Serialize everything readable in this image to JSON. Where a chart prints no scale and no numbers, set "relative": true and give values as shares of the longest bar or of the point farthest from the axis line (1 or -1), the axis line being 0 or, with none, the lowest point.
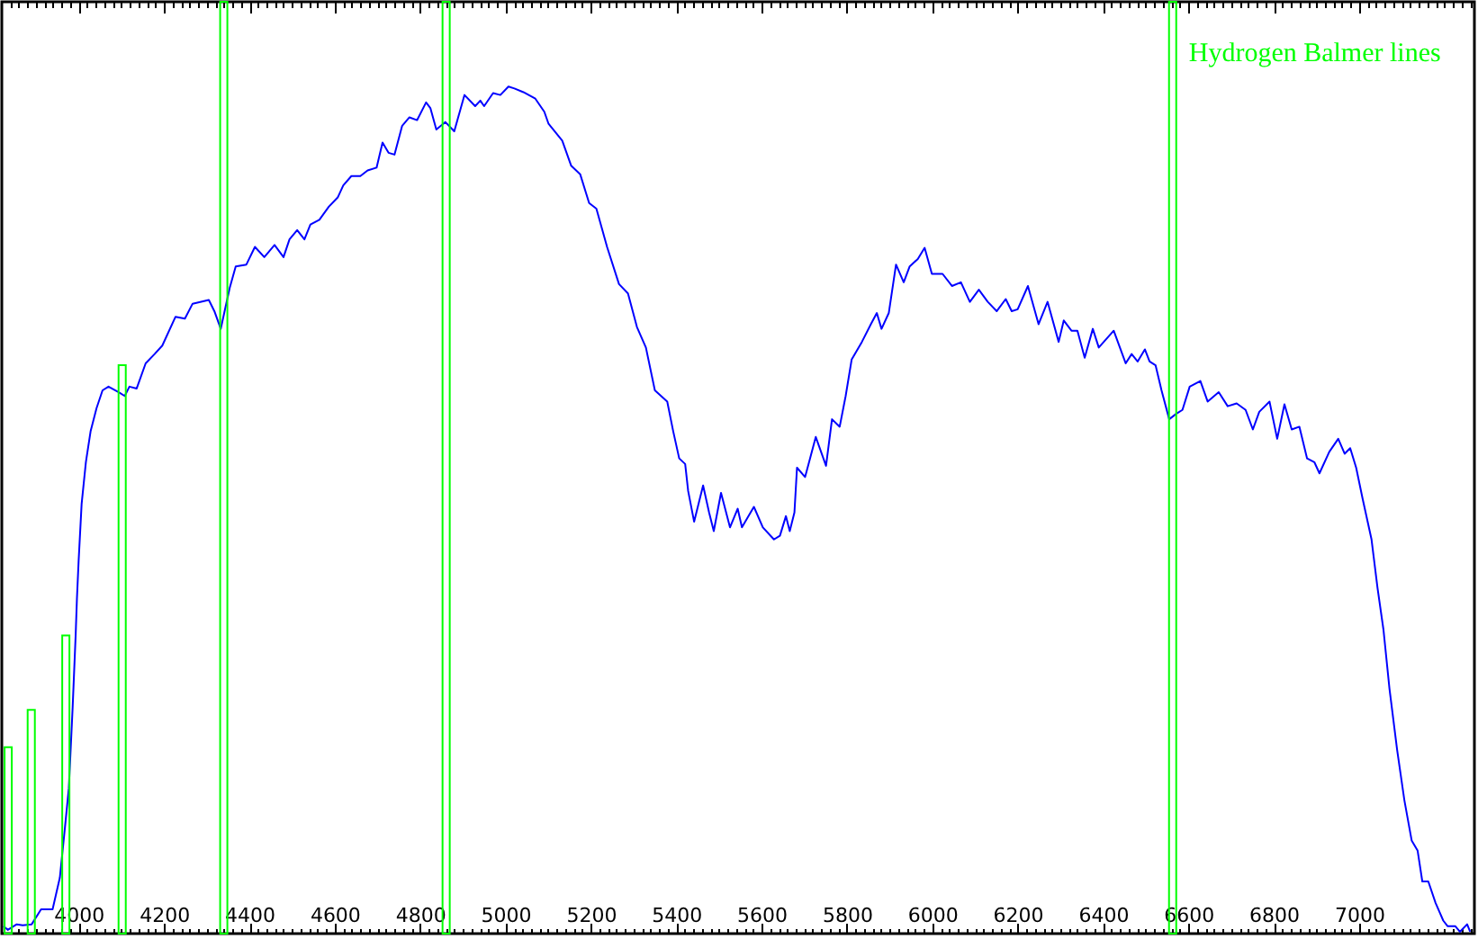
{
  "chart_data": {
    "type": "line",
    "relative": true,
    "xlim": [
      3820,
      7270
    ],
    "xticks": [
      {
        "value": 3840,
        "label": null
      },
      {
        "value": 3860,
        "label": null
      },
      {
        "value": 3880,
        "label": null
      },
      {
        "value": 3900,
        "label": null
      },
      {
        "value": 3920,
        "label": null
      },
      {
        "value": 3940,
        "label": null
      },
      {
        "value": 3960,
        "label": null
      },
      {
        "value": 3980,
        "label": null
      },
      4000,
      {
        "value": 4020,
        "label": null
      },
      {
        "value": 4040,
        "label": null
      },
      {
        "value": 4060,
        "label": null
      },
      {
        "value": 4080,
        "label": null
      },
      {
        "value": 4100,
        "label": null
      },
      {
        "value": 4120,
        "label": null
      },
      {
        "value": 4140,
        "label": null
      },
      {
        "value": 4160,
        "label": null
      },
      {
        "value": 4180,
        "label": null
      },
      4200,
      {
        "value": 4220,
        "label": null
      },
      {
        "value": 4240,
        "label": null
      },
      {
        "value": 4260,
        "label": null
      },
      {
        "value": 4280,
        "label": null
      },
      {
        "value": 4300,
        "label": null
      },
      {
        "value": 4320,
        "label": null
      },
      {
        "value": 4340,
        "label": null
      },
      {
        "value": 4360,
        "label": null
      },
      {
        "value": 4380,
        "label": null
      },
      4400,
      {
        "value": 4420,
        "label": null
      },
      {
        "value": 4440,
        "label": null
      },
      {
        "value": 4460,
        "label": null
      },
      {
        "value": 4480,
        "label": null
      },
      {
        "value": 4500,
        "label": null
      },
      {
        "value": 4520,
        "label": null
      },
      {
        "value": 4540,
        "label": null
      },
      {
        "value": 4560,
        "label": null
      },
      {
        "value": 4580,
        "label": null
      },
      4600,
      {
        "value": 4620,
        "label": null
      },
      {
        "value": 4640,
        "label": null
      },
      {
        "value": 4660,
        "label": null
      },
      {
        "value": 4680,
        "label": null
      },
      {
        "value": 4700,
        "label": null
      },
      {
        "value": 4720,
        "label": null
      },
      {
        "value": 4740,
        "label": null
      },
      {
        "value": 4760,
        "label": null
      },
      {
        "value": 4780,
        "label": null
      },
      4800,
      {
        "value": 4820,
        "label": null
      },
      {
        "value": 4840,
        "label": null
      },
      {
        "value": 4860,
        "label": null
      },
      {
        "value": 4880,
        "label": null
      },
      {
        "value": 4900,
        "label": null
      },
      {
        "value": 4920,
        "label": null
      },
      {
        "value": 4940,
        "label": null
      },
      {
        "value": 4960,
        "label": null
      },
      {
        "value": 4980,
        "label": null
      },
      5000,
      {
        "value": 5020,
        "label": null
      },
      {
        "value": 5040,
        "label": null
      },
      {
        "value": 5060,
        "label": null
      },
      {
        "value": 5080,
        "label": null
      },
      {
        "value": 5100,
        "label": null
      },
      {
        "value": 5120,
        "label": null
      },
      {
        "value": 5140,
        "label": null
      },
      {
        "value": 5160,
        "label": null
      },
      {
        "value": 5180,
        "label": null
      },
      5200,
      {
        "value": 5220,
        "label": null
      },
      {
        "value": 5240,
        "label": null
      },
      {
        "value": 5260,
        "label": null
      },
      {
        "value": 5280,
        "label": null
      },
      {
        "value": 5300,
        "label": null
      },
      {
        "value": 5320,
        "label": null
      },
      {
        "value": 5340,
        "label": null
      },
      {
        "value": 5360,
        "label": null
      },
      {
        "value": 5380,
        "label": null
      },
      5400,
      {
        "value": 5420,
        "label": null
      },
      {
        "value": 5440,
        "label": null
      },
      {
        "value": 5460,
        "label": null
      },
      {
        "value": 5480,
        "label": null
      },
      {
        "value": 5500,
        "label": null
      },
      {
        "value": 5520,
        "label": null
      },
      {
        "value": 5540,
        "label": null
      },
      {
        "value": 5560,
        "label": null
      },
      {
        "value": 5580,
        "label": null
      },
      5600,
      {
        "value": 5620,
        "label": null
      },
      {
        "value": 5640,
        "label": null
      },
      {
        "value": 5660,
        "label": null
      },
      {
        "value": 5680,
        "label": null
      },
      {
        "value": 5700,
        "label": null
      },
      {
        "value": 5720,
        "label": null
      },
      {
        "value": 5740,
        "label": null
      },
      {
        "value": 5760,
        "label": null
      },
      {
        "value": 5780,
        "label": null
      },
      5800,
      {
        "value": 5820,
        "label": null
      },
      {
        "value": 5840,
        "label": null
      },
      {
        "value": 5860,
        "label": null
      },
      {
        "value": 5880,
        "label": null
      },
      {
        "value": 5900,
        "label": null
      },
      {
        "value": 5920,
        "label": null
      },
      {
        "value": 5940,
        "label": null
      },
      {
        "value": 5960,
        "label": null
      },
      {
        "value": 5980,
        "label": null
      },
      6000,
      {
        "value": 6020,
        "label": null
      },
      {
        "value": 6040,
        "label": null
      },
      {
        "value": 6060,
        "label": null
      },
      {
        "value": 6080,
        "label": null
      },
      {
        "value": 6100,
        "label": null
      },
      {
        "value": 6120,
        "label": null
      },
      {
        "value": 6140,
        "label": null
      },
      {
        "value": 6160,
        "label": null
      },
      {
        "value": 6180,
        "label": null
      },
      6200,
      {
        "value": 6220,
        "label": null
      },
      {
        "value": 6240,
        "label": null
      },
      {
        "value": 6260,
        "label": null
      },
      {
        "value": 6280,
        "label": null
      },
      {
        "value": 6300,
        "label": null
      },
      {
        "value": 6320,
        "label": null
      },
      {
        "value": 6340,
        "label": null
      },
      {
        "value": 6360,
        "label": null
      },
      {
        "value": 6380,
        "label": null
      },
      6400,
      {
        "value": 6420,
        "label": null
      },
      {
        "value": 6440,
        "label": null
      },
      {
        "value": 6460,
        "label": null
      },
      {
        "value": 6480,
        "label": null
      },
      {
        "value": 6500,
        "label": null
      },
      {
        "value": 6520,
        "label": null
      },
      {
        "value": 6540,
        "label": null
      },
      {
        "value": 6560,
        "label": null
      },
      {
        "value": 6580,
        "label": null
      },
      6600,
      {
        "value": 6620,
        "label": null
      },
      {
        "value": 6640,
        "label": null
      },
      {
        "value": 6660,
        "label": null
      },
      {
        "value": 6680,
        "label": null
      },
      {
        "value": 6700,
        "label": null
      },
      {
        "value": 6720,
        "label": null
      },
      {
        "value": 6740,
        "label": null
      },
      {
        "value": 6760,
        "label": null
      },
      {
        "value": 6780,
        "label": null
      },
      6800,
      {
        "value": 6820,
        "label": null
      },
      {
        "value": 6840,
        "label": null
      },
      {
        "value": 6860,
        "label": null
      },
      {
        "value": 6880,
        "label": null
      },
      {
        "value": 6900,
        "label": null
      },
      {
        "value": 6920,
        "label": null
      },
      {
        "value": 6940,
        "label": null
      },
      {
        "value": 6960,
        "label": null
      },
      {
        "value": 6980,
        "label": null
      },
      7000,
      {
        "value": 7020,
        "label": null
      },
      {
        "value": 7040,
        "label": null
      },
      {
        "value": 7060,
        "label": null
      },
      {
        "value": 7080,
        "label": null
      },
      {
        "value": 7100,
        "label": null
      },
      {
        "value": 7120,
        "label": null
      },
      {
        "value": 7140,
        "label": null
      },
      {
        "value": 7160,
        "label": null
      },
      {
        "value": 7180,
        "label": null
      },
      {
        "value": 7200,
        "label": null
      },
      {
        "value": 7220,
        "label": null
      },
      {
        "value": 7240,
        "label": null
      },
      {
        "value": 7260,
        "label": null
      }
    ],
    "series": [
      {
        "color": "#0000ff",
        "x": [
          3824,
          3834,
          3855,
          3869,
          3890,
          3912,
          3939,
          3956,
          3968,
          3977,
          3986,
          3993,
          3996,
          4000,
          4007,
          4017,
          4028,
          4042,
          4056,
          4070,
          4094,
          4108,
          4119,
          4136,
          4157,
          4178,
          4196,
          4227,
          4249,
          4267,
          4305,
          4318,
          4333,
          4342,
          4354,
          4368,
          4393,
          4413,
          4435,
          4459,
          4480,
          4494,
          4512,
          4529,
          4543,
          4564,
          4586,
          4607,
          4620,
          4639,
          4660,
          4677,
          4698,
          4712,
          4726,
          4740,
          4758,
          4775,
          4793,
          4814,
          4824,
          4838,
          4859,
          4880,
          4904,
          4929,
          4941,
          4950,
          4971,
          4988,
          5007,
          5021,
          5042,
          5070,
          5091,
          5101,
          5133,
          5154,
          5175,
          5196,
          5213,
          5238,
          5266,
          5287,
          5308,
          5329,
          5350,
          5379,
          5393,
          5407,
          5421,
          5428,
          5442,
          5463,
          5477,
          5488,
          5505,
          5526,
          5544,
          5554,
          5582,
          5603,
          5629,
          5643,
          5657,
          5666,
          5677,
          5683,
          5702,
          5727,
          5751,
          5765,
          5783,
          5797,
          5811,
          5835,
          5856,
          5870,
          5881,
          5898,
          5915,
          5933,
          5947,
          5966,
          5982,
          5999,
          6024,
          6046,
          6067,
          6088,
          6109,
          6130,
          6151,
          6172,
          6186,
          6200,
          6224,
          6249,
          6270,
          6296,
          6308,
          6326,
          6340,
          6357,
          6376,
          6390,
          6425,
          6453,
          6467,
          6481,
          6498,
          6509,
          6523,
          6537,
          6555,
          6572,
          6586,
          6603,
          6628,
          6645,
          6671,
          6692,
          6713,
          6734,
          6751,
          6766,
          6790,
          6808,
          6825,
          6842,
          6860,
          6878,
          6895,
          6907,
          6930,
          6951,
          6966,
          6979,
          6993,
          7008,
          7029,
          7043,
          7057,
          7071,
          7089,
          7106,
          7123,
          7137,
          7148,
          7162,
          7179,
          7197,
          7207,
          7225,
          7236,
          7253,
          7260
        ],
        "values": [
          0.008,
          0.004,
          0.01,
          0.009,
          0.01,
          0.026,
          0.026,
          0.06,
          0.114,
          0.156,
          0.243,
          0.32,
          0.359,
          0.4,
          0.461,
          0.506,
          0.539,
          0.564,
          0.583,
          0.587,
          0.581,
          0.577,
          0.587,
          0.585,
          0.612,
          0.622,
          0.631,
          0.662,
          0.66,
          0.676,
          0.68,
          0.668,
          0.649,
          0.668,
          0.693,
          0.716,
          0.718,
          0.737,
          0.726,
          0.739,
          0.726,
          0.745,
          0.755,
          0.745,
          0.761,
          0.766,
          0.78,
          0.79,
          0.803,
          0.813,
          0.813,
          0.819,
          0.822,
          0.849,
          0.838,
          0.836,
          0.867,
          0.876,
          0.873,
          0.892,
          0.886,
          0.863,
          0.871,
          0.861,
          0.9,
          0.888,
          0.894,
          0.888,
          0.902,
          0.9,
          0.909,
          0.907,
          0.903,
          0.896,
          0.882,
          0.869,
          0.851,
          0.824,
          0.815,
          0.784,
          0.778,
          0.737,
          0.697,
          0.687,
          0.651,
          0.629,
          0.583,
          0.571,
          0.539,
          0.51,
          0.504,
          0.475,
          0.442,
          0.481,
          0.452,
          0.432,
          0.473,
          0.436,
          0.456,
          0.436,
          0.458,
          0.436,
          0.423,
          0.427,
          0.448,
          0.432,
          0.452,
          0.5,
          0.49,
          0.533,
          0.502,
          0.552,
          0.544,
          0.577,
          0.616,
          0.635,
          0.654,
          0.666,
          0.649,
          0.666,
          0.718,
          0.699,
          0.716,
          0.724,
          0.736,
          0.708,
          0.708,
          0.695,
          0.699,
          0.678,
          0.691,
          0.678,
          0.668,
          0.681,
          0.668,
          0.67,
          0.695,
          0.654,
          0.678,
          0.635,
          0.658,
          0.647,
          0.647,
          0.618,
          0.649,
          0.629,
          0.647,
          0.612,
          0.622,
          0.614,
          0.627,
          0.614,
          0.61,
          0.583,
          0.552,
          0.558,
          0.562,
          0.587,
          0.593,
          0.571,
          0.581,
          0.566,
          0.569,
          0.562,
          0.541,
          0.56,
          0.571,
          0.531,
          0.568,
          0.541,
          0.544,
          0.51,
          0.506,
          0.494,
          0.517,
          0.531,
          0.515,
          0.521,
          0.5,
          0.467,
          0.423,
          0.371,
          0.326,
          0.263,
          0.197,
          0.143,
          0.1,
          0.089,
          0.056,
          0.056,
          0.033,
          0.014,
          0.008,
          0.008,
          0.002,
          0.01,
          0.002
        ]
      },
      {
        "name": "Hydrogen Balmer lines",
        "type": "bar",
        "color": "#00ff00",
        "x": [
          3835,
          3889,
          3970,
          4102,
          4340,
          4861,
          6563
        ],
        "values": [
          0.2,
          0.24,
          0.32,
          0.61,
          1,
          1,
          1
        ]
      }
    ]
  }
}
